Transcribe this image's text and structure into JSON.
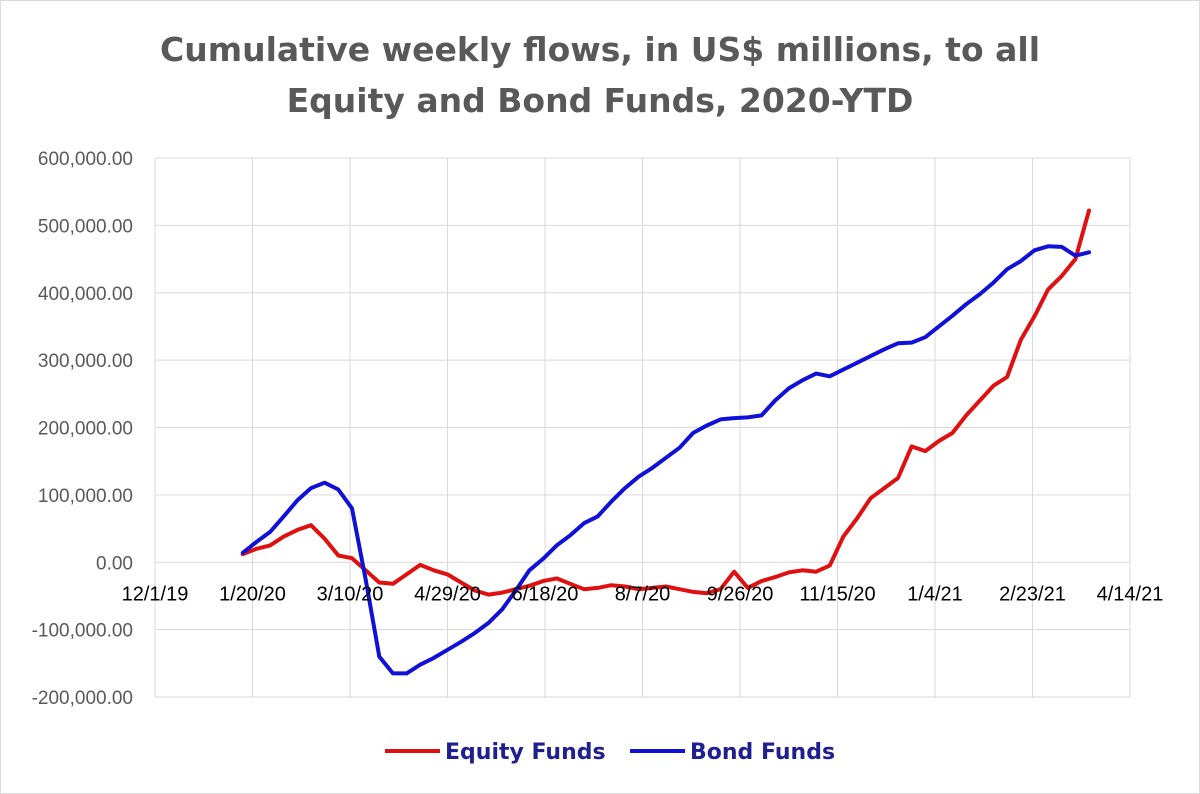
{
  "chart_data": {
    "type": "line",
    "title_lines": [
      "Cumulative weekly flows, in US$ millions, to all",
      "Equity and Bond Funds, 2020-YTD"
    ],
    "xlabel": "",
    "ylabel": "",
    "x_tick_labels": [
      "12/1/19",
      "1/20/20",
      "3/10/20",
      "4/29/20",
      "6/18/20",
      "8/7/20",
      "9/26/20",
      "11/15/20",
      "1/4/21",
      "2/23/21",
      "4/14/21"
    ],
    "y_tick_labels": [
      "600,000.00",
      "500,000.00",
      "400,000.00",
      "300,000.00",
      "200,000.00",
      "100,000.00",
      "0.00",
      "-100,000.00",
      "-200,000.00"
    ],
    "ylim": [
      -200000,
      600000
    ],
    "xlim": [
      "2019-12-01",
      "2021-04-14"
    ],
    "grid": true,
    "legend_position": "bottom",
    "series": [
      {
        "name": "Equity Funds",
        "color": "#e01010",
        "points": [
          [
            "2020-01-15",
            12000
          ],
          [
            "2020-01-22",
            20000
          ],
          [
            "2020-01-29",
            25000
          ],
          [
            "2020-02-05",
            38000
          ],
          [
            "2020-02-12",
            48000
          ],
          [
            "2020-02-19",
            55000
          ],
          [
            "2020-02-26",
            35000
          ],
          [
            "2020-03-04",
            10000
          ],
          [
            "2020-03-11",
            6000
          ],
          [
            "2020-03-18",
            -12000
          ],
          [
            "2020-03-25",
            -30000
          ],
          [
            "2020-04-01",
            -32000
          ],
          [
            "2020-04-08",
            -18000
          ],
          [
            "2020-04-15",
            -4000
          ],
          [
            "2020-04-22",
            -12000
          ],
          [
            "2020-04-29",
            -18000
          ],
          [
            "2020-05-06",
            -30000
          ],
          [
            "2020-05-13",
            -42000
          ],
          [
            "2020-05-20",
            -48000
          ],
          [
            "2020-05-27",
            -45000
          ],
          [
            "2020-06-03",
            -40000
          ],
          [
            "2020-06-10",
            -35000
          ],
          [
            "2020-06-17",
            -28000
          ],
          [
            "2020-06-24",
            -24000
          ],
          [
            "2020-07-01",
            -32000
          ],
          [
            "2020-07-08",
            -40000
          ],
          [
            "2020-07-15",
            -38000
          ],
          [
            "2020-07-22",
            -34000
          ],
          [
            "2020-07-29",
            -36000
          ],
          [
            "2020-08-05",
            -40000
          ],
          [
            "2020-08-12",
            -38000
          ],
          [
            "2020-08-19",
            -36000
          ],
          [
            "2020-08-26",
            -40000
          ],
          [
            "2020-09-02",
            -44000
          ],
          [
            "2020-09-09",
            -46000
          ],
          [
            "2020-09-16",
            -40000
          ],
          [
            "2020-09-23",
            -14000
          ],
          [
            "2020-09-30",
            -38000
          ],
          [
            "2020-10-07",
            -28000
          ],
          [
            "2020-10-14",
            -22000
          ],
          [
            "2020-10-21",
            -15000
          ],
          [
            "2020-10-28",
            -12000
          ],
          [
            "2020-11-04",
            -14000
          ],
          [
            "2020-11-11",
            -5000
          ],
          [
            "2020-11-18",
            38000
          ],
          [
            "2020-11-25",
            65000
          ],
          [
            "2020-12-02",
            95000
          ],
          [
            "2020-12-09",
            110000
          ],
          [
            "2020-12-16",
            125000
          ],
          [
            "2020-12-23",
            172000
          ],
          [
            "2020-12-30",
            165000
          ],
          [
            "2021-01-06",
            180000
          ],
          [
            "2021-01-13",
            192000
          ],
          [
            "2021-01-20",
            218000
          ],
          [
            "2021-01-27",
            240000
          ],
          [
            "2021-02-03",
            262000
          ],
          [
            "2021-02-10",
            275000
          ],
          [
            "2021-02-17",
            330000
          ],
          [
            "2021-02-24",
            365000
          ],
          [
            "2021-03-03",
            405000
          ],
          [
            "2021-03-10",
            425000
          ],
          [
            "2021-03-17",
            450000
          ],
          [
            "2021-03-24",
            522000
          ]
        ]
      },
      {
        "name": "Bond Funds",
        "color": "#1010d8",
        "points": [
          [
            "2020-01-15",
            14000
          ],
          [
            "2020-01-22",
            30000
          ],
          [
            "2020-01-29",
            45000
          ],
          [
            "2020-02-05",
            68000
          ],
          [
            "2020-02-12",
            92000
          ],
          [
            "2020-02-19",
            110000
          ],
          [
            "2020-02-26",
            118000
          ],
          [
            "2020-03-04",
            108000
          ],
          [
            "2020-03-11",
            80000
          ],
          [
            "2020-03-18",
            -25000
          ],
          [
            "2020-03-25",
            -140000
          ],
          [
            "2020-04-01",
            -165000
          ],
          [
            "2020-04-08",
            -165000
          ],
          [
            "2020-04-15",
            -152000
          ],
          [
            "2020-04-22",
            -142000
          ],
          [
            "2020-04-29",
            -130000
          ],
          [
            "2020-05-06",
            -118000
          ],
          [
            "2020-05-13",
            -105000
          ],
          [
            "2020-05-20",
            -90000
          ],
          [
            "2020-05-27",
            -70000
          ],
          [
            "2020-06-03",
            -42000
          ],
          [
            "2020-06-10",
            -12000
          ],
          [
            "2020-06-17",
            5000
          ],
          [
            "2020-06-24",
            25000
          ],
          [
            "2020-07-01",
            40000
          ],
          [
            "2020-07-08",
            58000
          ],
          [
            "2020-07-15",
            68000
          ],
          [
            "2020-07-22",
            90000
          ],
          [
            "2020-07-29",
            110000
          ],
          [
            "2020-08-05",
            127000
          ],
          [
            "2020-08-12",
            140000
          ],
          [
            "2020-08-19",
            155000
          ],
          [
            "2020-08-26",
            170000
          ],
          [
            "2020-09-02",
            192000
          ],
          [
            "2020-09-09",
            203000
          ],
          [
            "2020-09-16",
            212000
          ],
          [
            "2020-09-23",
            214000
          ],
          [
            "2020-09-30",
            215000
          ],
          [
            "2020-10-07",
            218000
          ],
          [
            "2020-10-14",
            240000
          ],
          [
            "2020-10-21",
            258000
          ],
          [
            "2020-10-28",
            270000
          ],
          [
            "2020-11-04",
            280000
          ],
          [
            "2020-11-11",
            276000
          ],
          [
            "2020-11-18",
            286000
          ],
          [
            "2020-11-25",
            296000
          ],
          [
            "2020-12-02",
            306000
          ],
          [
            "2020-12-09",
            316000
          ],
          [
            "2020-12-16",
            325000
          ],
          [
            "2020-12-23",
            326000
          ],
          [
            "2020-12-30",
            334000
          ],
          [
            "2021-01-06",
            350000
          ],
          [
            "2021-01-13",
            366000
          ],
          [
            "2021-01-20",
            383000
          ],
          [
            "2021-01-27",
            398000
          ],
          [
            "2021-02-03",
            415000
          ],
          [
            "2021-02-10",
            435000
          ],
          [
            "2021-02-17",
            447000
          ],
          [
            "2021-02-24",
            463000
          ],
          [
            "2021-03-03",
            469000
          ],
          [
            "2021-03-10",
            468000
          ],
          [
            "2021-03-17",
            455000
          ],
          [
            "2021-03-24",
            460000
          ]
        ]
      }
    ]
  }
}
